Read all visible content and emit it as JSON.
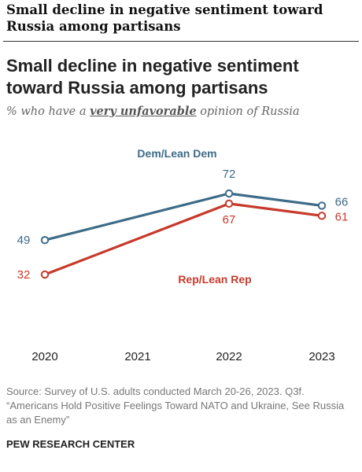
{
  "header": {
    "title": "Small decline in negative sentiment toward Russia among partisans"
  },
  "chart_data": {
    "type": "line",
    "title": "Small decline in negative sentiment toward Russia among partisans",
    "subtitle": {
      "before": "% who have a ",
      "emphasis": "very unfavorable",
      "after": " opinion of Russia"
    },
    "x": [
      "2020",
      "2021",
      "2022",
      "2023"
    ],
    "series": [
      {
        "name": "Dem/Lean Dem",
        "color": "#3d6b88",
        "points": [
          {
            "x": "2020",
            "y": 49
          },
          {
            "x": "2022",
            "y": 72
          },
          {
            "x": "2023",
            "y": 66
          }
        ]
      },
      {
        "name": "Rep/Lean Rep",
        "color": "#c63a2b",
        "points": [
          {
            "x": "2020",
            "y": 32
          },
          {
            "x": "2022",
            "y": 67
          },
          {
            "x": "2023",
            "y": 61
          }
        ]
      }
    ],
    "grid": false,
    "legend": "inline"
  },
  "footer": {
    "source": "Source: Survey of U.S. adults conducted March 20-26, 2023. Q3f. “Americans Hold Positive Feelings Toward NATO and Ukraine, See Russia as an Enemy”",
    "org": "PEW RESEARCH CENTER"
  }
}
